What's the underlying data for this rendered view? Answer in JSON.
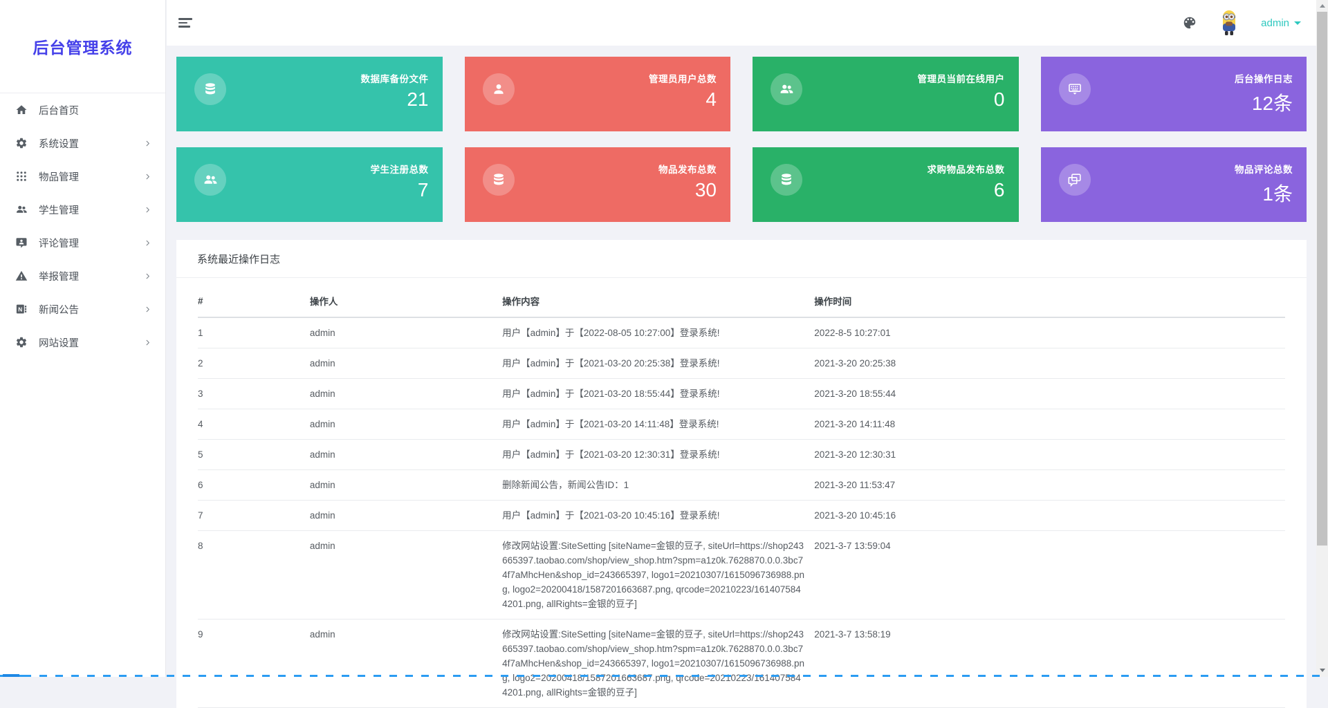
{
  "app": {
    "title": "后台管理系统"
  },
  "colors": {
    "brand": "#4540e9",
    "accent": "#2ec8bf",
    "teal_card": "#35c3ab",
    "red_card": "#ee6b64",
    "green_card": "#29b168",
    "purple_card": "#8a64de"
  },
  "header": {
    "username": "admin"
  },
  "sidebar": {
    "items": [
      {
        "label": "后台首页",
        "icon": "home",
        "expandable": false
      },
      {
        "label": "系统设置",
        "icon": "gear",
        "expandable": true
      },
      {
        "label": "物品管理",
        "icon": "grid",
        "expandable": true
      },
      {
        "label": "学生管理",
        "icon": "users",
        "expandable": true
      },
      {
        "label": "评论管理",
        "icon": "comment",
        "expandable": true
      },
      {
        "label": "举报管理",
        "icon": "warning",
        "expandable": true
      },
      {
        "label": "新闻公告",
        "icon": "news",
        "expandable": true
      },
      {
        "label": "网站设置",
        "icon": "gear",
        "expandable": true
      }
    ]
  },
  "cards": [
    {
      "label": "数据库备份文件",
      "value": "21",
      "color": "#35c3ab",
      "icon": "database"
    },
    {
      "label": "管理员用户总数",
      "value": "4",
      "color": "#ee6b64",
      "icon": "user"
    },
    {
      "label": "管理员当前在线用户",
      "value": "0",
      "color": "#29b168",
      "icon": "users"
    },
    {
      "label": "后台操作日志",
      "value": "12条",
      "color": "#8a64de",
      "icon": "keyboard"
    },
    {
      "label": "学生注册总数",
      "value": "7",
      "color": "#35c3ab",
      "icon": "users"
    },
    {
      "label": "物品发布总数",
      "value": "30",
      "color": "#ee6b64",
      "icon": "database"
    },
    {
      "label": "求购物品发布总数",
      "value": "6",
      "color": "#29b168",
      "icon": "database"
    },
    {
      "label": "物品评论总数",
      "value": "1条",
      "color": "#8a64de",
      "icon": "comments"
    }
  ],
  "log_panel": {
    "title": "系统最近操作日志",
    "columns": [
      "#",
      "操作人",
      "操作内容",
      "操作时间"
    ],
    "rows": [
      {
        "id": "1",
        "operator": "admin",
        "content": "用户【admin】于【2022-08-05 10:27:00】登录系统!",
        "time": "2022-8-5 10:27:01"
      },
      {
        "id": "2",
        "operator": "admin",
        "content": "用户【admin】于【2021-03-20 20:25:38】登录系统!",
        "time": "2021-3-20 20:25:38"
      },
      {
        "id": "3",
        "operator": "admin",
        "content": "用户【admin】于【2021-03-20 18:55:44】登录系统!",
        "time": "2021-3-20 18:55:44"
      },
      {
        "id": "4",
        "operator": "admin",
        "content": "用户【admin】于【2021-03-20 14:11:48】登录系统!",
        "time": "2021-3-20 14:11:48"
      },
      {
        "id": "5",
        "operator": "admin",
        "content": "用户【admin】于【2021-03-20 12:30:31】登录系统!",
        "time": "2021-3-20 12:30:31"
      },
      {
        "id": "6",
        "operator": "admin",
        "content": "删除新闻公告，新闻公告ID：1",
        "time": "2021-3-20 11:53:47"
      },
      {
        "id": "7",
        "operator": "admin",
        "content": "用户【admin】于【2021-03-20 10:45:16】登录系统!",
        "time": "2021-3-20 10:45:16"
      },
      {
        "id": "8",
        "operator": "admin",
        "content": "修改网站设置:SiteSetting [siteName=金银的豆子, siteUrl=https://shop243665397.taobao.com/shop/view_shop.htm?spm=a1z0k.7628870.0.0.3bc74f7aMhcHen&shop_id=243665397, logo1=20210307/1615096736988.png, logo2=20200418/1587201663687.png, qrcode=20210223/1614075844201.png, allRights=金银的豆子]",
        "time": "2021-3-7 13:59:04"
      },
      {
        "id": "9",
        "operator": "admin",
        "content": "修改网站设置:SiteSetting [siteName=金银的豆子, siteUrl=https://shop243665397.taobao.com/shop/view_shop.htm?spm=a1z0k.7628870.0.0.3bc74f7aMhcHen&shop_id=243665397, logo1=20210307/1615096736988.png, logo2=20200418/1587201663687.png, qrcode=20210223/1614075844201.png, allRights=金银的豆子]",
        "time": "2021-3-7 13:58:19"
      }
    ]
  }
}
